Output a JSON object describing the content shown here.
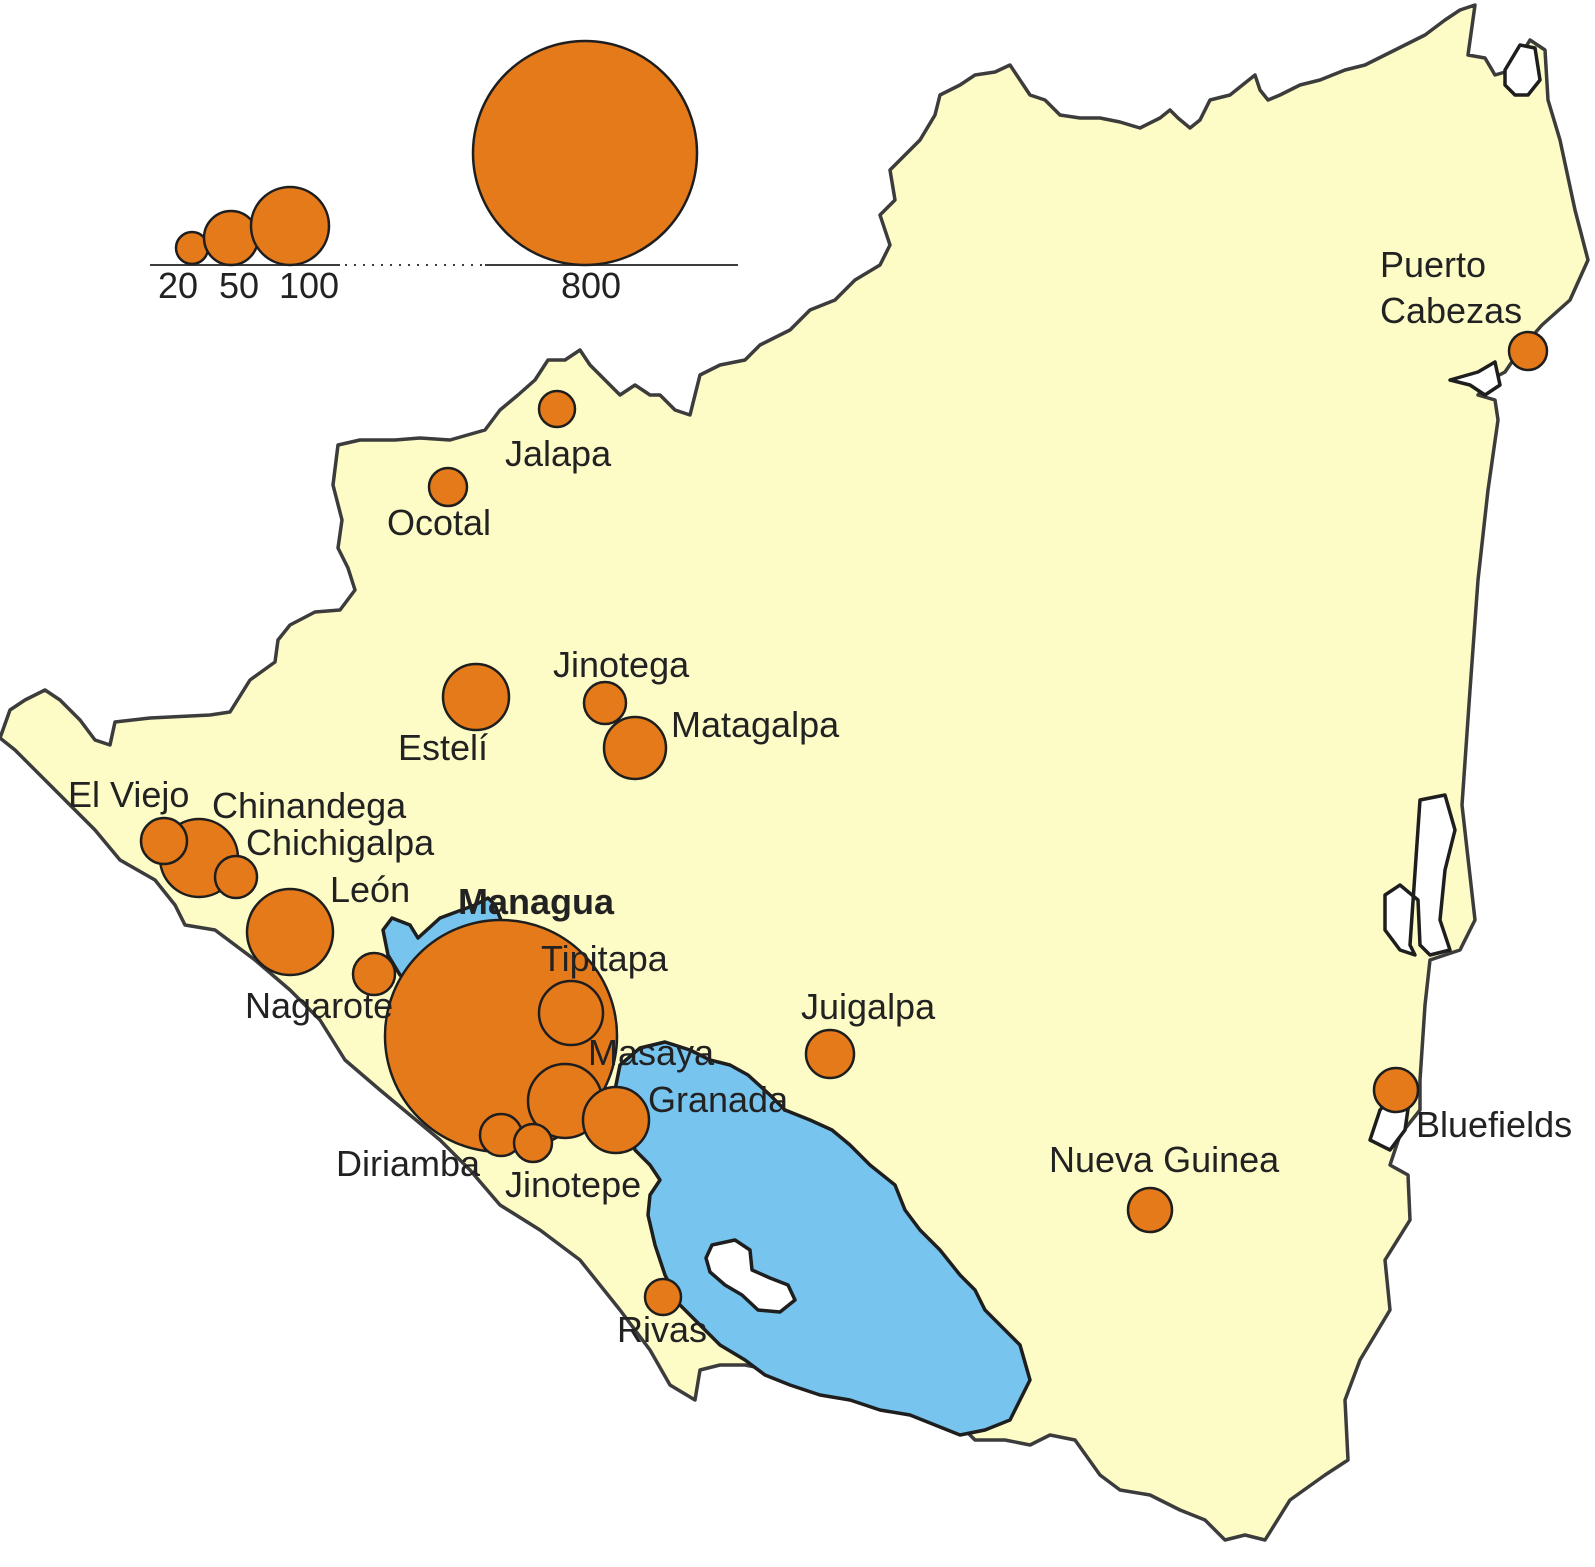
{
  "colors": {
    "land": "#fdfcc7",
    "water": "#77c4ee",
    "bubble": "#e57a1b",
    "outline": "#3c3c3c"
  },
  "legend": {
    "title": "",
    "values": [
      "20",
      "50",
      "100",
      "800"
    ]
  },
  "cities": [
    {
      "id": "managua",
      "name": "Managua",
      "capital": true
    },
    {
      "id": "leon",
      "name": "León"
    },
    {
      "id": "chinandega",
      "name": "Chinandega"
    },
    {
      "id": "el-viejo",
      "name": "El Viejo"
    },
    {
      "id": "chichigalpa",
      "name": "Chichigalpa"
    },
    {
      "id": "nagarote",
      "name": "Nagarote"
    },
    {
      "id": "tipitapa",
      "name": "Tipitapa"
    },
    {
      "id": "masaya",
      "name": "Masaya"
    },
    {
      "id": "granada",
      "name": "Granada"
    },
    {
      "id": "diriamba",
      "name": "Diriamba"
    },
    {
      "id": "jinotepe",
      "name": "Jinotepe"
    },
    {
      "id": "rivas",
      "name": "Rivas"
    },
    {
      "id": "esteli",
      "name": "Estelí"
    },
    {
      "id": "jinotega",
      "name": "Jinotega"
    },
    {
      "id": "matagalpa",
      "name": "Matagalpa"
    },
    {
      "id": "ocotal",
      "name": "Ocotal"
    },
    {
      "id": "jalapa",
      "name": "Jalapa"
    },
    {
      "id": "juigalpa",
      "name": "Juigalpa"
    },
    {
      "id": "nueva-guinea",
      "name": "Nueva Guinea"
    },
    {
      "id": "bluefields",
      "name": "Bluefields"
    },
    {
      "id": "puerto-cabezas",
      "name": "Puerto Cabezas",
      "lines": [
        "Puerto",
        "Cabezas"
      ]
    }
  ]
}
